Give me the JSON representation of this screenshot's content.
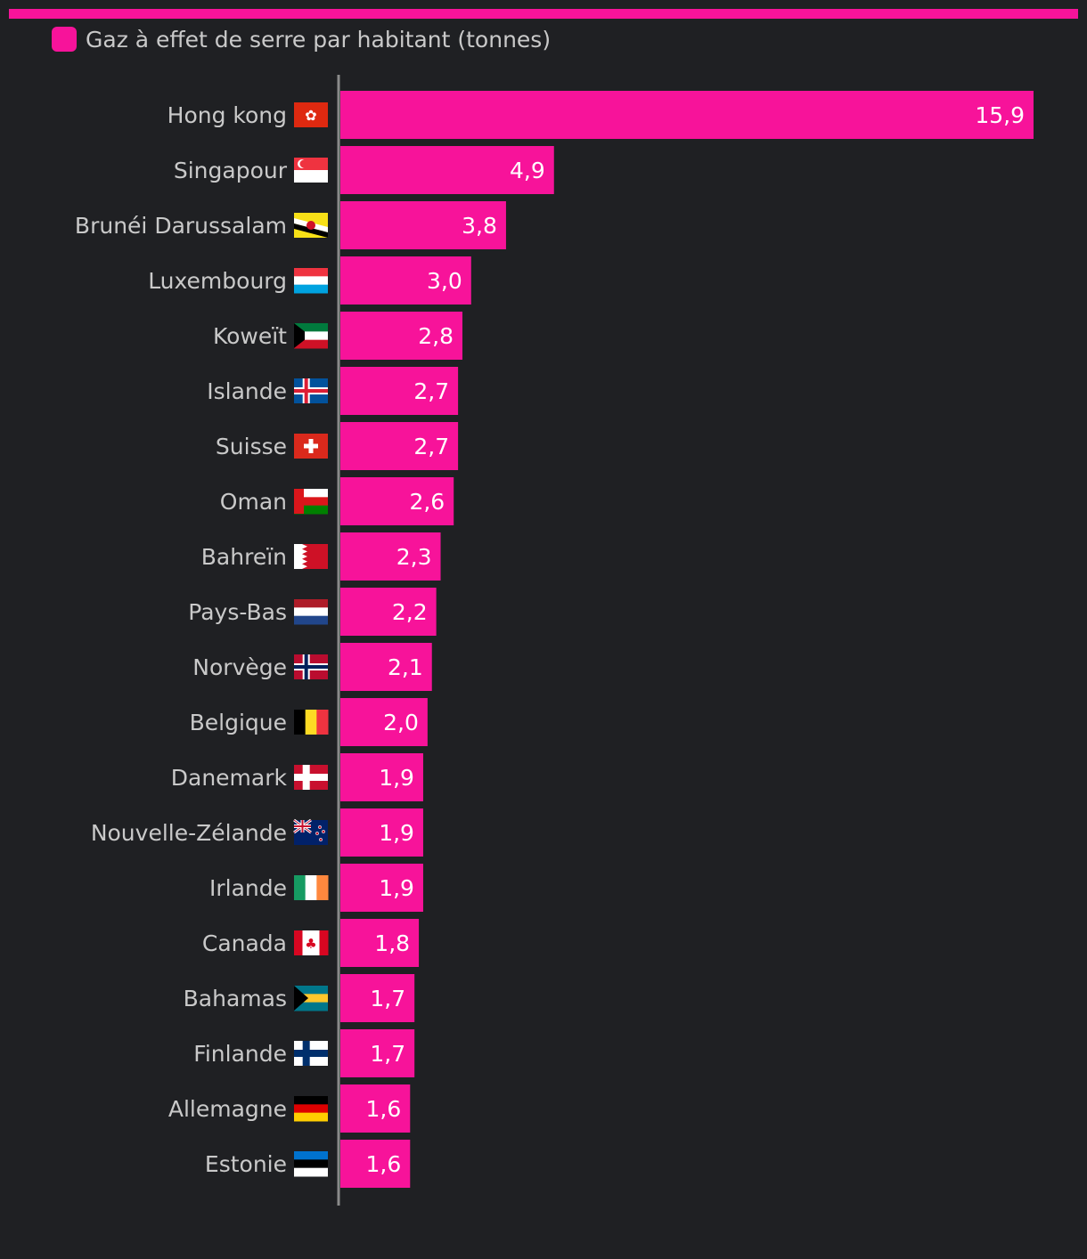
{
  "legend": {
    "label": "Gaz à effet de serre par habitant (tonnes)"
  },
  "colors": {
    "background": "#1f2023",
    "bar": "#f7139a",
    "text": "#c9c9c9",
    "value_text": "#ffffff",
    "axis": "#8a8a8a"
  },
  "chart_data": {
    "type": "bar",
    "orientation": "horizontal",
    "series": [
      {
        "name": "Gaz à effet de serre par habitant (tonnes)",
        "values": [
          15.9,
          4.9,
          3.8,
          3.0,
          2.8,
          2.7,
          2.7,
          2.6,
          2.3,
          2.2,
          2.1,
          2.0,
          1.9,
          1.9,
          1.9,
          1.8,
          1.7,
          1.7,
          1.6,
          1.6
        ]
      }
    ],
    "categories": [
      "Hong kong",
      "Singapour",
      "Brunéi Darussalam",
      "Luxembourg",
      "Koweït",
      "Islande",
      "Suisse",
      "Oman",
      "Bahreïn",
      "Pays-Bas",
      "Norvège",
      "Belgique",
      "Danemark",
      "Nouvelle-Zélande",
      "Irlande",
      "Canada",
      "Bahamas",
      "Finlande",
      "Allemagne",
      "Estonie"
    ],
    "value_labels": [
      "15,9",
      "4,9",
      "3,8",
      "3,0",
      "2,8",
      "2,7",
      "2,7",
      "2,6",
      "2,3",
      "2,2",
      "2,1",
      "2,0",
      "1,9",
      "1,9",
      "1,9",
      "1,8",
      "1,7",
      "1,7",
      "1,6",
      "1,6"
    ],
    "flags": [
      "hong-kong-flag-icon",
      "singapore-flag-icon",
      "brunei-flag-icon",
      "luxembourg-flag-icon",
      "kuwait-flag-icon",
      "iceland-flag-icon",
      "switzerland-flag-icon",
      "oman-flag-icon",
      "bahrain-flag-icon",
      "netherlands-flag-icon",
      "norway-flag-icon",
      "belgium-flag-icon",
      "denmark-flag-icon",
      "new-zealand-flag-icon",
      "ireland-flag-icon",
      "canada-flag-icon",
      "bahamas-flag-icon",
      "finland-flag-icon",
      "germany-flag-icon",
      "estonia-flag-icon"
    ],
    "xlim": [
      0,
      15.9
    ],
    "grid": false,
    "legend_position": "top-left"
  }
}
